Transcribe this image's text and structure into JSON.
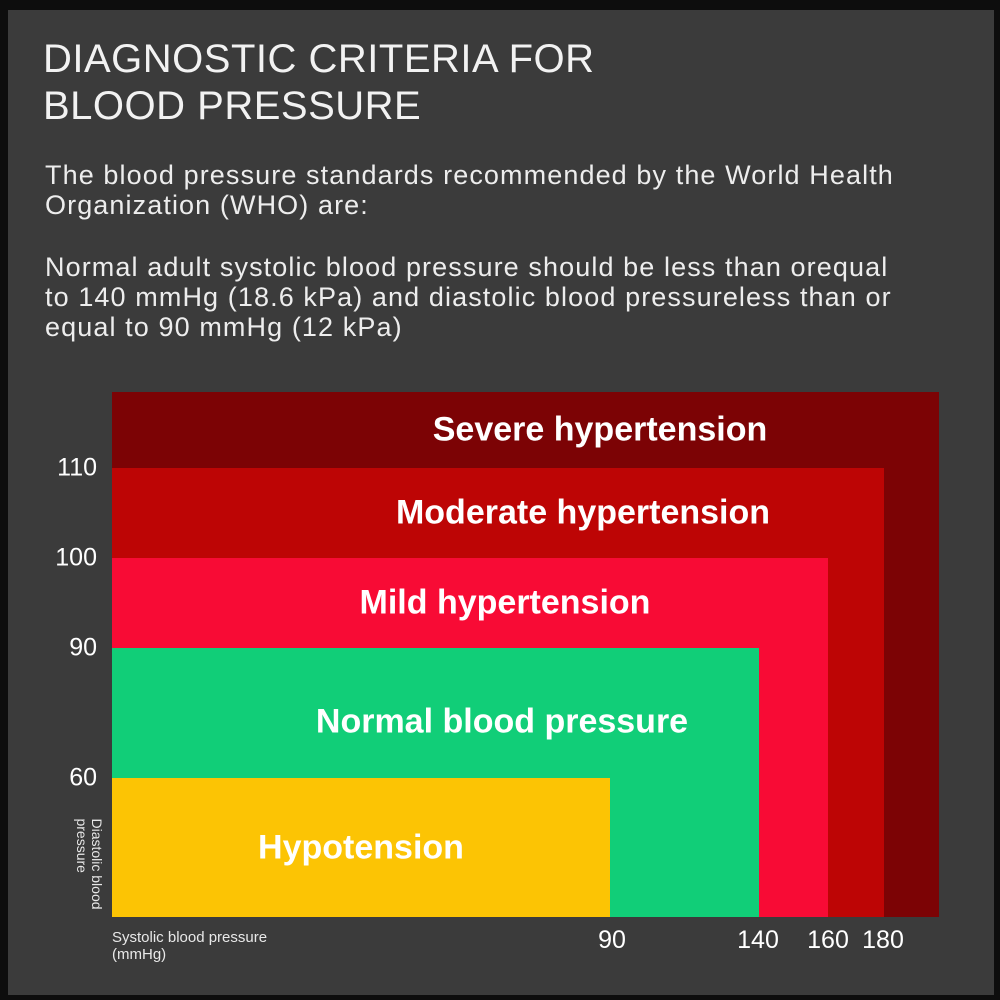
{
  "header": {
    "title_line1": "DIAGNOSTIC CRITERIA FOR",
    "title_line2": "BLOOD PRESSURE",
    "intro_line1": "The blood pressure standards recommended by the World Health",
    "intro_line2": "Organization (WHO) are:",
    "criteria_line1": "Normal adult systolic blood pressure should be less than orequal",
    "criteria_line2": "to 140 mmHg (18.6 kPa) and diastolic blood pressureless than or",
    "criteria_line3": "equal to 90 mmHg (12 kPa)"
  },
  "chart_data": {
    "type": "nested-rect",
    "title": "Blood pressure categories by systolic and diastolic pressure",
    "xlabel_line1": "Systolic blood pressure",
    "xlabel_line2": "(mmHg)",
    "ylabel_line1": "Diastolic blood",
    "ylabel_line2": "pressure",
    "x_ticks": [
      "90",
      "140",
      "160",
      "180"
    ],
    "y_ticks": [
      "110",
      "100",
      "90",
      "60"
    ],
    "legend": "none",
    "background": "#3b3b3b",
    "series": [
      {
        "name": "Severe hypertension",
        "diastolic_from": 110,
        "diastolic_to": null,
        "systolic_from": 180,
        "systolic_to": null,
        "color": "#7c0305"
      },
      {
        "name": "Moderate hypertension",
        "diastolic_from": 100,
        "diastolic_to": 110,
        "systolic_from": 160,
        "systolic_to": 180,
        "color": "#bd0505"
      },
      {
        "name": "Mild hypertension",
        "diastolic_from": 90,
        "diastolic_to": 100,
        "systolic_from": 140,
        "systolic_to": 160,
        "color": "#f80b35"
      },
      {
        "name": "Normal blood pressure",
        "diastolic_from": 60,
        "diastolic_to": 90,
        "systolic_from": 90,
        "systolic_to": 140,
        "color": "#11ce78"
      },
      {
        "name": "Hypotension",
        "diastolic_from": null,
        "diastolic_to": 60,
        "systolic_from": null,
        "systolic_to": 90,
        "color": "#fcc404"
      }
    ]
  },
  "colors": {
    "background": "#3b3b3b",
    "frame": "#0d0d0d",
    "text": "#ededed",
    "label_text": "#ffffff"
  }
}
